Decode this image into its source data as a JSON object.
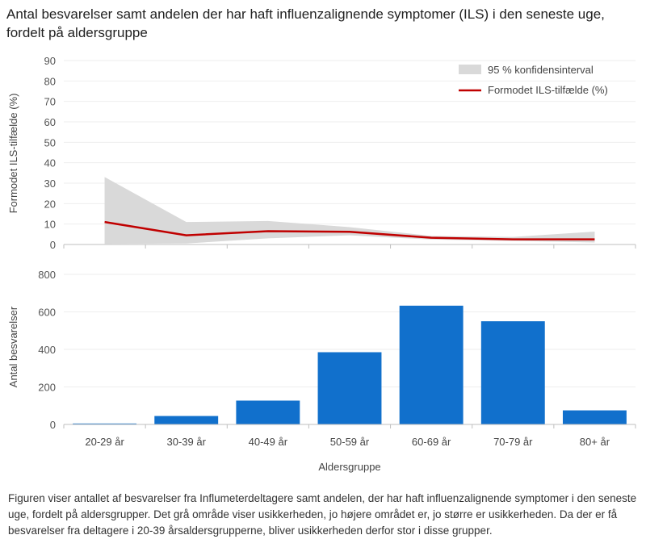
{
  "title": "Antal besvarelser samt andelen der har haft influenzalignende symptomer (ILS) i den seneste uge, fordelt på aldersgruppe",
  "caption": "Figuren viser antallet af besvarelser fra Influmeterdeltagere samt andelen, der har haft influenzalignende symptomer i den seneste uge, fordelt på aldersgrupper. Det grå område viser usikkerheden,  jo højere området  er, jo større er usikkerheden. Da der er få besvarelser fra deltagere i 20-39 årsaldersgrupperne, bliver usikkerheden derfor  stor i disse grupper.",
  "colors": {
    "line": "#c00000",
    "band": "#d9d9d9",
    "bar": "#1170cc",
    "grid": "#eeeeee",
    "axis": "#bfbfbf"
  },
  "chart_data": [
    {
      "type": "line",
      "xlabel": "",
      "ylabel": "Formodet ILS-tilfælde (%)",
      "ylim": [
        0,
        90
      ],
      "yticks": [
        0,
        10,
        20,
        30,
        40,
        50,
        60,
        70,
        80,
        90
      ],
      "categories": [
        "20-29 år",
        "30-39 år",
        "40-49 år",
        "50-59 år",
        "60-69 år",
        "70-79 år",
        "80+ år"
      ],
      "legend_position": "top-right",
      "series": [
        {
          "name": "Formodet ILS-tilfælde (%)",
          "values": [
            11,
            4.5,
            6.5,
            6.2,
            3.3,
            2.5,
            2.5
          ]
        },
        {
          "name": "95 % konfidensinterval",
          "type": "area-band",
          "lower": [
            0.3,
            0.5,
            3.0,
            4.5,
            2.4,
            1.8,
            1.0
          ],
          "upper": [
            33,
            11,
            11.5,
            8.5,
            4.2,
            3.7,
            6.3
          ]
        }
      ]
    },
    {
      "type": "bar",
      "xlabel": "Aldersgruppe",
      "ylabel": "Antal besvarelser",
      "ylim": [
        0,
        800
      ],
      "yticks": [
        0,
        200,
        400,
        600,
        800
      ],
      "categories": [
        "20-29 år",
        "30-39 år",
        "40-49 år",
        "50-59 år",
        "60-69 år",
        "70-79 år",
        "80+ år"
      ],
      "values": [
        5,
        45,
        127,
        385,
        633,
        550,
        75
      ]
    }
  ]
}
